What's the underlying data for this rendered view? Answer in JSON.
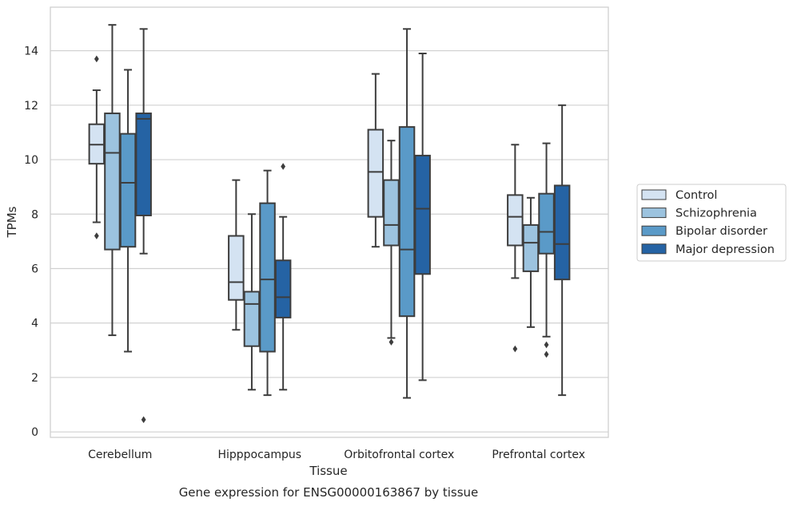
{
  "caption": "Gene expression for ENSG00000163867 by tissue",
  "chart_data": {
    "type": "box",
    "xlabel": "Tissue",
    "ylabel": "TPMs",
    "ylim": [
      -0.2,
      15.6
    ],
    "yticks": [
      0,
      2,
      4,
      6,
      8,
      10,
      12,
      14
    ],
    "grid": "horizontal",
    "legend_position": "right",
    "categories": [
      "Cerebellum",
      "Hipppocampus",
      "Orbitofrontal cortex",
      "Prefrontal cortex"
    ],
    "series": [
      {
        "name": "Control",
        "color": "#d4e3f2",
        "boxes": [
          {
            "whisker_low": 7.7,
            "q1": 9.85,
            "median": 10.55,
            "q3": 11.3,
            "whisker_high": 12.55,
            "outliers": [
              13.7,
              7.2
            ]
          },
          {
            "whisker_low": 3.75,
            "q1": 4.85,
            "median": 5.5,
            "q3": 7.2,
            "whisker_high": 9.25,
            "outliers": []
          },
          {
            "whisker_low": 6.8,
            "q1": 7.9,
            "median": 9.55,
            "q3": 11.1,
            "whisker_high": 13.15,
            "outliers": []
          },
          {
            "whisker_low": 5.65,
            "q1": 6.85,
            "median": 7.9,
            "q3": 8.7,
            "whisker_high": 10.55,
            "outliers": [
              3.05
            ]
          }
        ]
      },
      {
        "name": "Schizophrenia",
        "color": "#9cc3df",
        "boxes": [
          {
            "whisker_low": 3.55,
            "q1": 6.7,
            "median": 10.25,
            "q3": 11.7,
            "whisker_high": 14.95,
            "outliers": []
          },
          {
            "whisker_low": 1.55,
            "q1": 3.15,
            "median": 4.7,
            "q3": 5.15,
            "whisker_high": 8.0,
            "outliers": []
          },
          {
            "whisker_low": 3.45,
            "q1": 6.85,
            "median": 7.6,
            "q3": 9.25,
            "whisker_high": 10.7,
            "outliers": [
              3.3
            ]
          },
          {
            "whisker_low": 3.85,
            "q1": 5.9,
            "median": 6.95,
            "q3": 7.6,
            "whisker_high": 8.6,
            "outliers": []
          }
        ]
      },
      {
        "name": "Bipolar disorder",
        "color": "#5a9ac8",
        "boxes": [
          {
            "whisker_low": 2.95,
            "q1": 6.8,
            "median": 9.15,
            "q3": 10.95,
            "whisker_high": 13.3,
            "outliers": []
          },
          {
            "whisker_low": 1.35,
            "q1": 2.95,
            "median": 5.6,
            "q3": 8.4,
            "whisker_high": 9.6,
            "outliers": []
          },
          {
            "whisker_low": 1.25,
            "q1": 4.25,
            "median": 6.7,
            "q3": 11.2,
            "whisker_high": 14.8,
            "outliers": []
          },
          {
            "whisker_low": 3.5,
            "q1": 6.55,
            "median": 7.35,
            "q3": 8.75,
            "whisker_high": 10.6,
            "outliers": [
              3.2,
              2.85
            ]
          }
        ]
      },
      {
        "name": "Major depression",
        "color": "#2563a4",
        "boxes": [
          {
            "whisker_low": 6.55,
            "q1": 7.95,
            "median": 11.5,
            "q3": 11.7,
            "whisker_high": 14.8,
            "outliers": [
              0.45
            ]
          },
          {
            "whisker_low": 1.55,
            "q1": 4.2,
            "median": 4.95,
            "q3": 6.3,
            "whisker_high": 7.9,
            "outliers": [
              9.75
            ]
          },
          {
            "whisker_low": 1.9,
            "q1": 5.8,
            "median": 8.2,
            "q3": 10.15,
            "whisker_high": 13.9,
            "outliers": []
          },
          {
            "whisker_low": 1.35,
            "q1": 5.6,
            "median": 6.9,
            "q3": 9.05,
            "whisker_high": 12.0,
            "outliers": []
          }
        ]
      }
    ],
    "colors": {
      "edge": "#3d3d3d",
      "grid": "#d0d0d0",
      "frame": "#cfcfcf",
      "text": "#262626"
    }
  }
}
